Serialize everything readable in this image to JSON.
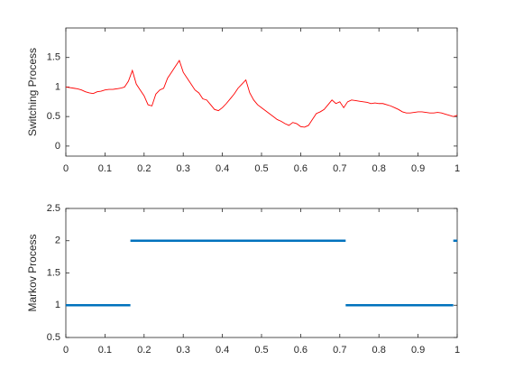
{
  "chart_data": [
    {
      "type": "line",
      "ylabel": "Switching Process",
      "xlim": [
        0,
        1
      ],
      "ylim": [
        -0.17,
        2
      ],
      "xticks": [
        0,
        0.1,
        0.2,
        0.3,
        0.4,
        0.5,
        0.6,
        0.7,
        0.8,
        0.9,
        1
      ],
      "yticks": [
        0,
        0.5,
        1,
        1.5
      ],
      "series": [
        {
          "color": "#ff0000",
          "x": [
            0,
            0.01,
            0.02,
            0.03,
            0.04,
            0.05,
            0.06,
            0.07,
            0.08,
            0.09,
            0.1,
            0.11,
            0.12,
            0.13,
            0.14,
            0.15,
            0.16,
            0.17,
            0.18,
            0.19,
            0.2,
            0.21,
            0.22,
            0.23,
            0.24,
            0.25,
            0.26,
            0.27,
            0.28,
            0.29,
            0.3,
            0.31,
            0.32,
            0.33,
            0.34,
            0.35,
            0.36,
            0.37,
            0.38,
            0.39,
            0.4,
            0.41,
            0.42,
            0.43,
            0.44,
            0.45,
            0.46,
            0.47,
            0.48,
            0.49,
            0.5,
            0.51,
            0.52,
            0.53,
            0.54,
            0.55,
            0.56,
            0.57,
            0.58,
            0.59,
            0.6,
            0.61,
            0.62,
            0.63,
            0.64,
            0.65,
            0.66,
            0.67,
            0.68,
            0.69,
            0.7,
            0.71,
            0.72,
            0.73,
            0.74,
            0.75,
            0.76,
            0.77,
            0.78,
            0.79,
            0.8,
            0.81,
            0.82,
            0.83,
            0.84,
            0.85,
            0.86,
            0.87,
            0.88,
            0.89,
            0.9,
            0.91,
            0.92,
            0.93,
            0.94,
            0.95,
            0.96,
            0.97,
            0.98,
            0.99,
            1
          ],
          "values": [
            1.0,
            0.99,
            0.98,
            0.97,
            0.95,
            0.92,
            0.9,
            0.89,
            0.92,
            0.93,
            0.95,
            0.96,
            0.96,
            0.97,
            0.98,
            1.0,
            1.1,
            1.28,
            1.05,
            0.95,
            0.85,
            0.7,
            0.68,
            0.88,
            0.95,
            0.98,
            1.15,
            1.25,
            1.35,
            1.45,
            1.25,
            1.15,
            1.05,
            0.95,
            0.9,
            0.8,
            0.78,
            0.7,
            0.62,
            0.6,
            0.65,
            0.72,
            0.8,
            0.88,
            0.98,
            1.05,
            1.12,
            0.9,
            0.78,
            0.7,
            0.65,
            0.6,
            0.55,
            0.5,
            0.45,
            0.42,
            0.38,
            0.35,
            0.4,
            0.38,
            0.33,
            0.32,
            0.35,
            0.45,
            0.55,
            0.58,
            0.62,
            0.7,
            0.78,
            0.72,
            0.75,
            0.65,
            0.75,
            0.78,
            0.77,
            0.76,
            0.75,
            0.74,
            0.72,
            0.73,
            0.72,
            0.72,
            0.7,
            0.68,
            0.65,
            0.62,
            0.58,
            0.56,
            0.56,
            0.57,
            0.58,
            0.58,
            0.57,
            0.56,
            0.56,
            0.57,
            0.56,
            0.54,
            0.52,
            0.5,
            0.52
          ]
        }
      ]
    },
    {
      "type": "line",
      "ylabel": "Markov Process",
      "xlim": [
        0,
        1
      ],
      "ylim": [
        0.5,
        2.5
      ],
      "xticks": [
        0,
        0.1,
        0.2,
        0.3,
        0.4,
        0.5,
        0.6,
        0.7,
        0.8,
        0.9,
        1
      ],
      "yticks": [
        0.5,
        1,
        1.5,
        2,
        2.5
      ],
      "series": [
        {
          "color": "#0072bd",
          "x": [
            0,
            0.165,
            0.165,
            0.165,
            0.715,
            0.715,
            0.715,
            0.99,
            0.99,
            0.99,
            1
          ],
          "values": [
            1,
            1,
            null,
            2,
            2,
            null,
            1,
            1,
            null,
            2,
            2
          ]
        }
      ]
    }
  ]
}
